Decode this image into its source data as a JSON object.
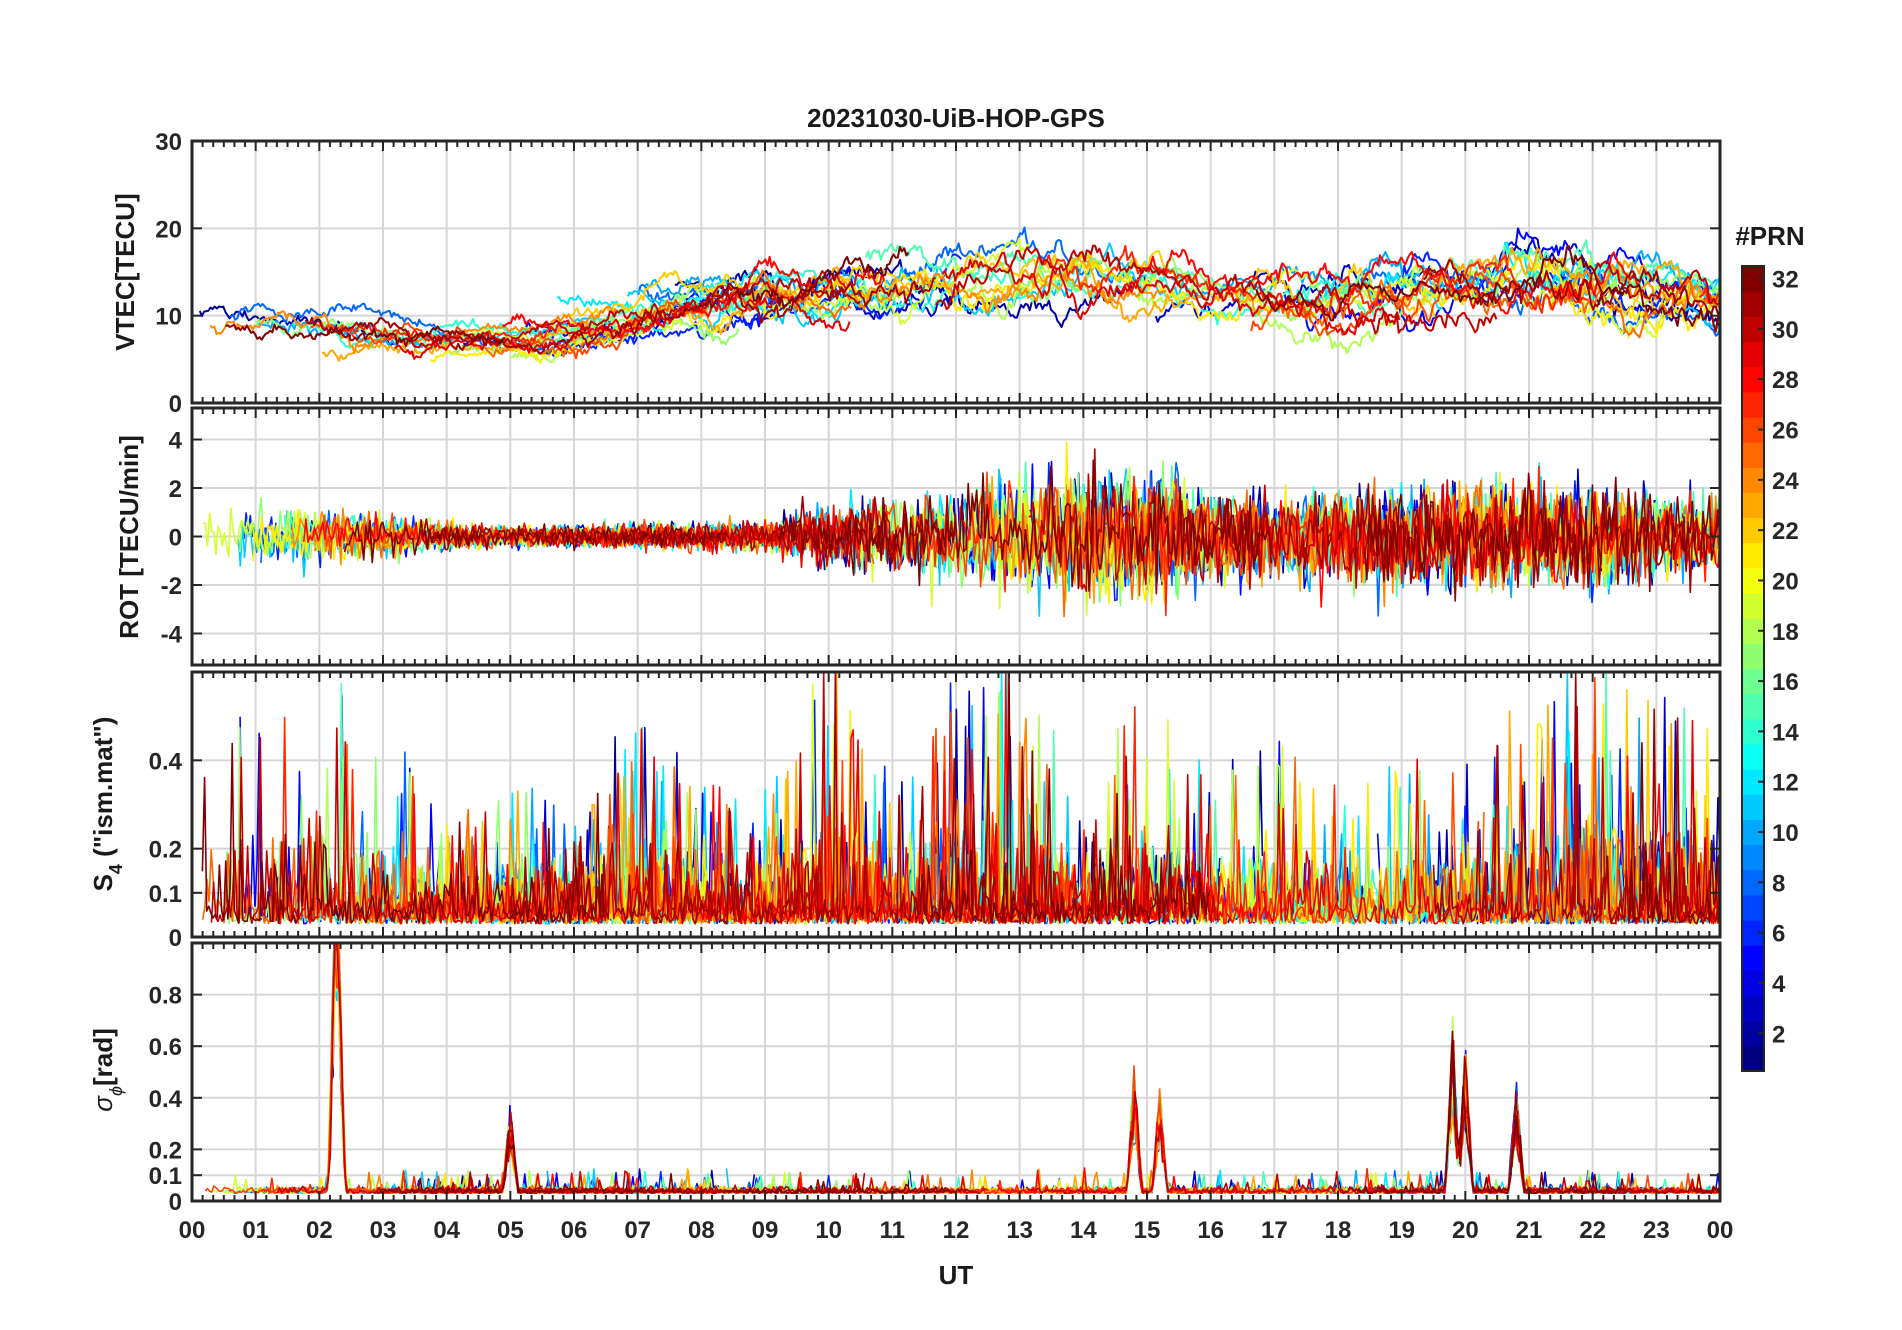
{
  "chart_data": {
    "type": "line",
    "title": "20231030-UiB-HOP-GPS",
    "xlabel": "UT",
    "x_ticks": [
      "00",
      "01",
      "02",
      "03",
      "04",
      "05",
      "06",
      "07",
      "08",
      "09",
      "10",
      "11",
      "12",
      "13",
      "14",
      "15",
      "16",
      "17",
      "18",
      "19",
      "20",
      "21",
      "22",
      "23",
      "00"
    ],
    "xlim": [
      0,
      24
    ],
    "colorbar": {
      "label": "#PRN",
      "range": [
        1,
        32
      ],
      "ticks": [
        "2",
        "4",
        "6",
        "8",
        "10",
        "12",
        "14",
        "16",
        "18",
        "20",
        "22",
        "24",
        "26",
        "28",
        "30",
        "32"
      ],
      "colormap": "jet"
    },
    "panels": [
      {
        "id": "vtec",
        "ylabel": "VTEC[TECU]",
        "ylim": [
          0,
          30
        ],
        "y_ticks": [
          0,
          10,
          20,
          30
        ],
        "y_tick_labels": [
          "0",
          "10",
          "20",
          "30"
        ],
        "activity_envelope": {
          "hours": [
            0,
            1,
            2,
            3,
            4,
            5,
            6,
            7,
            8,
            9,
            10,
            11,
            12,
            13,
            14,
            15,
            16,
            17,
            18,
            19,
            20,
            21,
            22,
            23,
            24
          ],
          "mean": [
            9,
            9,
            8,
            7.5,
            7,
            7,
            9,
            12,
            13,
            13,
            13,
            14,
            13,
            15,
            14,
            13,
            12,
            11,
            12,
            14,
            15,
            14,
            11,
            12,
            10
          ],
          "spread": [
            3,
            3,
            3,
            3,
            2,
            2,
            3,
            4,
            4,
            5,
            5,
            5,
            6,
            6,
            6,
            5,
            5,
            5,
            6,
            6,
            6,
            7,
            7,
            6,
            5
          ]
        }
      },
      {
        "id": "rot",
        "ylabel": "ROT [TECU/min]",
        "ylim": [
          -5.3,
          5.3
        ],
        "y_ticks": [
          -4,
          -2,
          0,
          2,
          4
        ],
        "y_tick_labels": [
          "-4",
          "-2",
          "0",
          "2",
          "4"
        ],
        "activity_envelope": {
          "hours": [
            0,
            1,
            2,
            3,
            4,
            5,
            6,
            7,
            8,
            9,
            10,
            11,
            12,
            13,
            14,
            15,
            16,
            17,
            18,
            19,
            20,
            21,
            22,
            23,
            24
          ],
          "amplitude": [
            2,
            2,
            2,
            1.5,
            1,
            0.8,
            0.8,
            1,
            1,
            1.2,
            2.5,
            3,
            3.5,
            4.5,
            5,
            5,
            3.5,
            3,
            3.5,
            4,
            4,
            4,
            4,
            3.5,
            3
          ]
        }
      },
      {
        "id": "s4",
        "ylabel": "S4 (\"ism.mat\")",
        "ylim": [
          0,
          0.6
        ],
        "y_ticks": [
          0,
          0.1,
          0.2,
          0.4
        ],
        "y_tick_labels": [
          "0",
          "0.1",
          "0.2",
          "0.4"
        ],
        "activity_envelope": {
          "hours": [
            0,
            1,
            2,
            3,
            4,
            5,
            6,
            7,
            8,
            9,
            10,
            11,
            12,
            13,
            14,
            15,
            16,
            17,
            18,
            19,
            20,
            21,
            22,
            23,
            24
          ],
          "peak": [
            0.5,
            0.5,
            0.55,
            0.45,
            0.2,
            0.3,
            0.25,
            0.45,
            0.3,
            0.3,
            0.6,
            0.3,
            0.55,
            0.6,
            0.3,
            0.5,
            0.3,
            0.4,
            0.3,
            0.35,
            0.35,
            0.5,
            0.6,
            0.5,
            0.5
          ]
        }
      },
      {
        "id": "sigma_phi",
        "ylabel": "σϕ[rad]",
        "ylim": [
          0,
          1
        ],
        "y_ticks": [
          0,
          0.1,
          0.2,
          0.4,
          0.6,
          0.8
        ],
        "y_tick_labels": [
          "0",
          "0.1",
          "0.2",
          "0.4",
          "0.6",
          "0.8"
        ],
        "peaks": [
          {
            "hour": 2.25,
            "value": 1.0
          },
          {
            "hour": 2.3,
            "value": 0.83
          },
          {
            "hour": 5.0,
            "value": 0.35
          },
          {
            "hour": 14.8,
            "value": 0.5
          },
          {
            "hour": 15.2,
            "value": 0.42
          },
          {
            "hour": 19.8,
            "value": 0.68
          },
          {
            "hour": 20.0,
            "value": 0.62
          },
          {
            "hour": 20.8,
            "value": 0.46
          }
        ]
      }
    ]
  }
}
